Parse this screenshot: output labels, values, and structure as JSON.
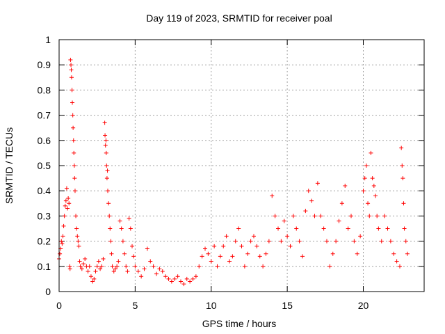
{
  "chart_data": {
    "type": "scatter",
    "title": "Day 119 of 2023, SRMTID for receiver poal",
    "xlabel": "GPS time / hours",
    "ylabel": "SRMTID / TECUs",
    "xlim": [
      0,
      24
    ],
    "ylim": [
      0,
      1
    ],
    "xticks": [
      0,
      5,
      10,
      15,
      20
    ],
    "xtick_labels": [
      "0",
      "5",
      "10",
      "15",
      "20"
    ],
    "yticks": [
      0,
      0.1,
      0.2,
      0.3,
      0.4,
      0.5,
      0.6,
      0.7,
      0.8,
      0.9,
      1
    ],
    "ytick_labels": [
      "0",
      "0.1",
      "0.2",
      "0.3",
      "0.4",
      "0.5",
      "0.6",
      "0.7",
      "0.8",
      "0.9",
      "1"
    ],
    "grid": true,
    "marker": "+",
    "series": [
      {
        "name": "SRMTID",
        "color": "#ff0000",
        "points": [
          [
            0.0,
            0.13
          ],
          [
            0.05,
            0.15
          ],
          [
            0.1,
            0.17
          ],
          [
            0.15,
            0.2
          ],
          [
            0.2,
            0.19
          ],
          [
            0.25,
            0.22
          ],
          [
            0.3,
            0.26
          ],
          [
            0.35,
            0.3
          ],
          [
            0.4,
            0.34
          ],
          [
            0.45,
            0.36
          ],
          [
            0.5,
            0.41
          ],
          [
            0.55,
            0.33
          ],
          [
            0.6,
            0.37
          ],
          [
            0.65,
            0.35
          ],
          [
            0.7,
            0.1
          ],
          [
            0.72,
            0.09
          ],
          [
            0.75,
            0.92
          ],
          [
            0.78,
            0.9
          ],
          [
            0.8,
            0.88
          ],
          [
            0.82,
            0.85
          ],
          [
            0.85,
            0.8
          ],
          [
            0.87,
            0.75
          ],
          [
            0.9,
            0.7
          ],
          [
            0.92,
            0.65
          ],
          [
            0.95,
            0.6
          ],
          [
            0.97,
            0.55
          ],
          [
            1.0,
            0.5
          ],
          [
            1.02,
            0.45
          ],
          [
            1.05,
            0.4
          ],
          [
            1.1,
            0.3
          ],
          [
            1.15,
            0.25
          ],
          [
            1.2,
            0.22
          ],
          [
            1.25,
            0.2
          ],
          [
            1.3,
            0.18
          ],
          [
            1.35,
            0.12
          ],
          [
            1.4,
            0.1
          ],
          [
            1.5,
            0.09
          ],
          [
            1.6,
            0.11
          ],
          [
            1.7,
            0.13
          ],
          [
            1.8,
            0.1
          ],
          [
            1.9,
            0.08
          ],
          [
            2.0,
            0.1
          ],
          [
            2.1,
            0.06
          ],
          [
            2.2,
            0.04
          ],
          [
            2.3,
            0.05
          ],
          [
            2.4,
            0.08
          ],
          [
            2.5,
            0.1
          ],
          [
            2.6,
            0.12
          ],
          [
            2.7,
            0.09
          ],
          [
            2.8,
            0.1
          ],
          [
            2.9,
            0.13
          ],
          [
            3.0,
            0.67
          ],
          [
            3.02,
            0.62
          ],
          [
            3.05,
            0.58
          ],
          [
            3.08,
            0.6
          ],
          [
            3.1,
            0.55
          ],
          [
            3.12,
            0.5
          ],
          [
            3.15,
            0.45
          ],
          [
            3.18,
            0.48
          ],
          [
            3.2,
            0.4
          ],
          [
            3.25,
            0.35
          ],
          [
            3.3,
            0.3
          ],
          [
            3.35,
            0.25
          ],
          [
            3.4,
            0.2
          ],
          [
            3.45,
            0.15
          ],
          [
            3.5,
            0.1
          ],
          [
            3.6,
            0.08
          ],
          [
            3.7,
            0.09
          ],
          [
            3.8,
            0.1
          ],
          [
            3.9,
            0.12
          ],
          [
            4.0,
            0.28
          ],
          [
            4.1,
            0.25
          ],
          [
            4.2,
            0.2
          ],
          [
            4.3,
            0.15
          ],
          [
            4.4,
            0.1
          ],
          [
            4.5,
            0.08
          ],
          [
            4.6,
            0.29
          ],
          [
            4.7,
            0.25
          ],
          [
            4.8,
            0.18
          ],
          [
            4.9,
            0.14
          ],
          [
            5.0,
            0.1
          ],
          [
            5.2,
            0.08
          ],
          [
            5.4,
            0.06
          ],
          [
            5.6,
            0.09
          ],
          [
            5.8,
            0.17
          ],
          [
            6.0,
            0.12
          ],
          [
            6.2,
            0.1
          ],
          [
            6.4,
            0.07
          ],
          [
            6.6,
            0.09
          ],
          [
            6.8,
            0.08
          ],
          [
            7.0,
            0.06
          ],
          [
            7.2,
            0.05
          ],
          [
            7.4,
            0.04
          ],
          [
            7.6,
            0.05
          ],
          [
            7.8,
            0.06
          ],
          [
            8.0,
            0.04
          ],
          [
            8.2,
            0.03
          ],
          [
            8.4,
            0.05
          ],
          [
            8.6,
            0.04
          ],
          [
            8.8,
            0.05
          ],
          [
            9.0,
            0.06
          ],
          [
            9.2,
            0.1
          ],
          [
            9.4,
            0.14
          ],
          [
            9.6,
            0.17
          ],
          [
            9.8,
            0.15
          ],
          [
            10.0,
            0.12
          ],
          [
            10.2,
            0.18
          ],
          [
            10.4,
            0.1
          ],
          [
            10.6,
            0.14
          ],
          [
            10.8,
            0.18
          ],
          [
            11.0,
            0.22
          ],
          [
            11.2,
            0.12
          ],
          [
            11.4,
            0.14
          ],
          [
            11.6,
            0.2
          ],
          [
            11.8,
            0.25
          ],
          [
            12.0,
            0.18
          ],
          [
            12.2,
            0.1
          ],
          [
            12.4,
            0.15
          ],
          [
            12.6,
            0.2
          ],
          [
            12.8,
            0.22
          ],
          [
            13.0,
            0.18
          ],
          [
            13.2,
            0.14
          ],
          [
            13.4,
            0.1
          ],
          [
            13.6,
            0.15
          ],
          [
            13.8,
            0.2
          ],
          [
            14.0,
            0.38
          ],
          [
            14.2,
            0.3
          ],
          [
            14.4,
            0.25
          ],
          [
            14.6,
            0.2
          ],
          [
            14.8,
            0.28
          ],
          [
            15.0,
            0.22
          ],
          [
            15.2,
            0.18
          ],
          [
            15.4,
            0.3
          ],
          [
            15.6,
            0.25
          ],
          [
            15.8,
            0.2
          ],
          [
            16.0,
            0.14
          ],
          [
            16.2,
            0.32
          ],
          [
            16.4,
            0.4
          ],
          [
            16.6,
            0.36
          ],
          [
            16.8,
            0.3
          ],
          [
            17.0,
            0.43
          ],
          [
            17.2,
            0.3
          ],
          [
            17.4,
            0.25
          ],
          [
            17.6,
            0.2
          ],
          [
            17.8,
            0.1
          ],
          [
            18.0,
            0.15
          ],
          [
            18.2,
            0.2
          ],
          [
            18.4,
            0.28
          ],
          [
            18.6,
            0.35
          ],
          [
            18.8,
            0.42
          ],
          [
            19.0,
            0.25
          ],
          [
            19.2,
            0.3
          ],
          [
            19.4,
            0.2
          ],
          [
            19.6,
            0.15
          ],
          [
            19.8,
            0.22
          ],
          [
            20.0,
            0.4
          ],
          [
            20.1,
            0.45
          ],
          [
            20.2,
            0.5
          ],
          [
            20.3,
            0.35
          ],
          [
            20.4,
            0.3
          ],
          [
            20.5,
            0.55
          ],
          [
            20.6,
            0.45
          ],
          [
            20.7,
            0.42
          ],
          [
            20.8,
            0.38
          ],
          [
            20.9,
            0.3
          ],
          [
            21.0,
            0.25
          ],
          [
            21.2,
            0.2
          ],
          [
            21.4,
            0.3
          ],
          [
            21.6,
            0.25
          ],
          [
            21.8,
            0.2
          ],
          [
            22.0,
            0.15
          ],
          [
            22.2,
            0.12
          ],
          [
            22.4,
            0.1
          ],
          [
            22.5,
            0.57
          ],
          [
            22.55,
            0.5
          ],
          [
            22.6,
            0.45
          ],
          [
            22.65,
            0.35
          ],
          [
            22.7,
            0.25
          ],
          [
            22.8,
            0.2
          ],
          [
            22.9,
            0.15
          ]
        ]
      }
    ]
  }
}
